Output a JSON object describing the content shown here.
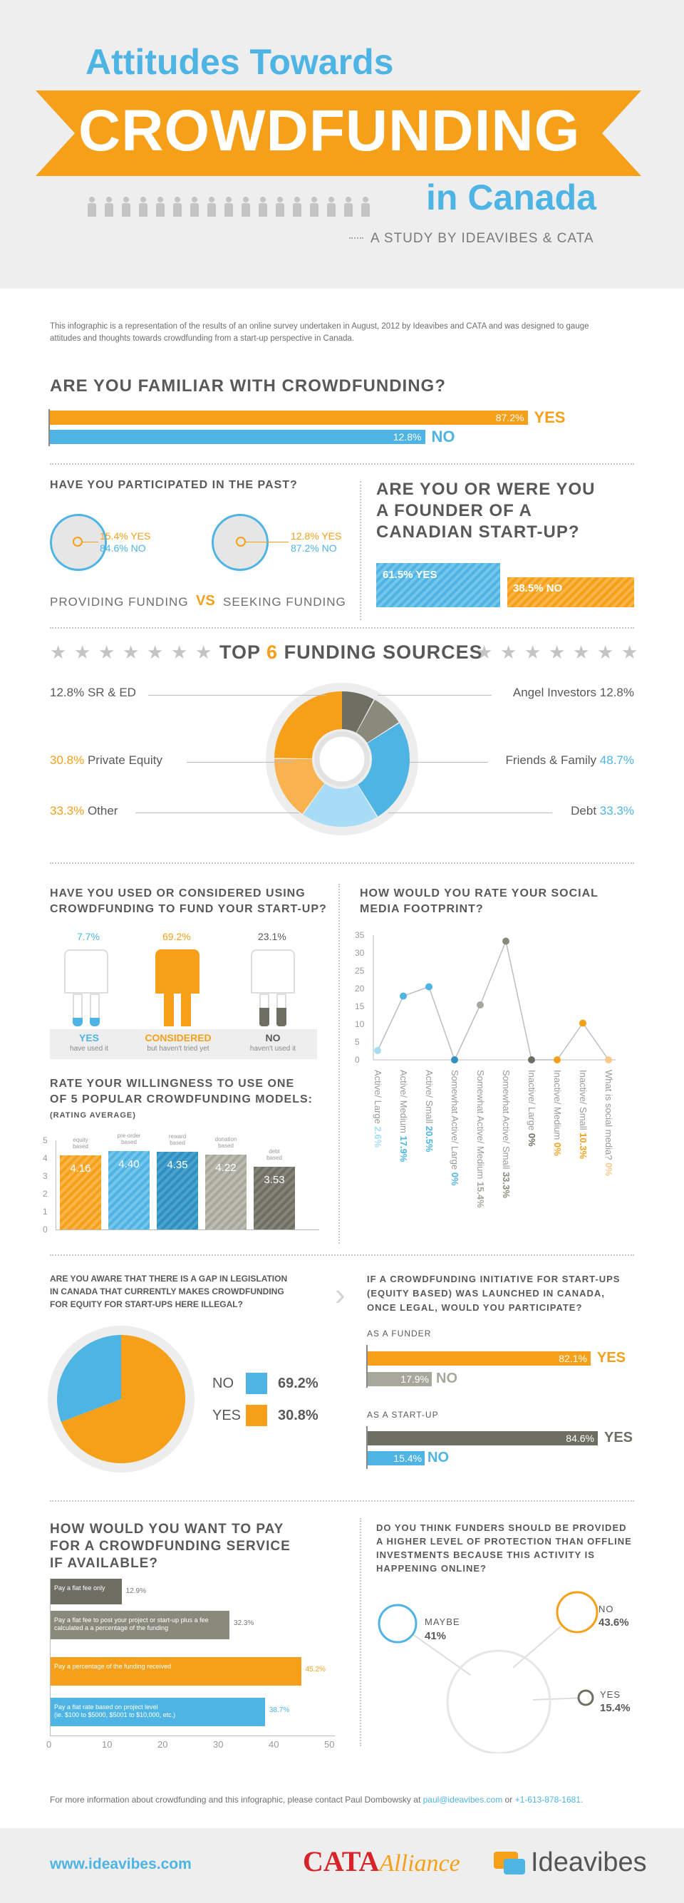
{
  "header": {
    "line1": "Attitudes Towards",
    "line2": "CROWDFUNDING",
    "line3": "in Canada",
    "study": "A STUDY BY IDEAVIBES & CATA"
  },
  "intro": "This infographic is a representation of the results of an online survey undertaken in August, 2012 by Ideavibes and CATA and was designed to gauge attitudes and thoughts towards crowdfunding from a start-up perspective in Canada.",
  "familiar": {
    "question": "ARE YOU FAMILIAR WITH CROWDFUNDING?",
    "yes_value": "87.2%",
    "yes_label": "YES",
    "yes": 87.2,
    "no_value": "12.8%",
    "no_label": "NO",
    "no": 12.8
  },
  "participated": {
    "question": "HAVE YOU PARTICIPATED IN THE PAST?",
    "providing": {
      "yes": "15.4% YES",
      "no": "84.6% NO"
    },
    "seeking": {
      "yes": "12.8% YES",
      "no": "87.2% NO"
    },
    "label_left": "PROVIDING FUNDING",
    "vs": "VS",
    "label_right": "SEEKING FUNDING"
  },
  "founder": {
    "question_line1": "ARE YOU OR WERE YOU",
    "question_line2": "A FOUNDER OF A",
    "question_line3": "CANADIAN START-UP?",
    "yes": "61.5% YES",
    "no": "38.5% NO",
    "yes_value": 61.5
  },
  "sources": {
    "title_a": "TOP",
    "title_num": "6",
    "title_b": "FUNDING SOURCES",
    "sred_value": "12.8%",
    "sred_label": "SR & ED",
    "angel_label": "Angel Investors",
    "angel_value": "12.8%",
    "pe_value": "30.8%",
    "pe_label": "Private Equity",
    "ff_label": "Friends & Family",
    "ff_value": "48.7%",
    "other_value": "33.3%",
    "other_label": "Other",
    "debt_label": "Debt",
    "debt_value": "33.3%"
  },
  "used": {
    "question_line1": "HAVE YOU USED OR CONSIDERED USING",
    "question_line2": "CROWDFUNDING TO FUND YOUR START-UP?",
    "yes_value": "7.7%",
    "yes_label": "YES",
    "yes_sub": "have used it",
    "considered_value": "69.2%",
    "considered_label": "CONSIDERED",
    "considered_sub": "but haven't tried yet",
    "no_value": "23.1%",
    "no_label": "NO",
    "no_sub": "haven't used it"
  },
  "willingness": {
    "question_line1": "RATE YOUR WILLINGNESS TO USE ONE",
    "question_line2": "OF 5 POPULAR CROWDFUNDING MODELS:",
    "sub": "(RATING AVERAGE)",
    "y_ticks": [
      "5",
      "4",
      "3",
      "2",
      "1",
      "0"
    ],
    "bars": [
      {
        "label_top": "equity",
        "label_bot": "based",
        "value_text": "4.16",
        "value": 4.16
      },
      {
        "label_top": "pre-order",
        "label_bot": "based",
        "value_text": "4.40",
        "value": 4.4
      },
      {
        "label_top": "reward",
        "label_bot": "based",
        "value_text": "4.35",
        "value": 4.35
      },
      {
        "label_top": "donation",
        "label_bot": "based",
        "value_text": "4.22",
        "value": 4.22
      },
      {
        "label_top": "debt",
        "label_bot": "based",
        "value_text": "3.53",
        "value": 3.53
      }
    ]
  },
  "social": {
    "question_line1": "HOW WOULD YOU RATE YOUR SOCIAL",
    "question_line2": "MEDIA FOOTPRINT?",
    "y_ticks": [
      "35",
      "30",
      "25",
      "20",
      "15",
      "10",
      "5",
      "0"
    ],
    "points": [
      {
        "label": "Active/ Large",
        "value_text": "2.6%",
        "value": 2.6
      },
      {
        "label": "Active/ Medium",
        "value_text": "17.9%",
        "value": 17.9
      },
      {
        "label": "Active/ Small",
        "value_text": "20.5%",
        "value": 20.5
      },
      {
        "label": "Somewhat Active/ Large",
        "value_text": "0%",
        "value": 0
      },
      {
        "label": "Somewhat Active/ Medium",
        "value_text": "15.4%",
        "value": 15.4
      },
      {
        "label": "Somewhat Active/ Small",
        "value_text": "33.3%",
        "value": 33.3
      },
      {
        "label": "Inactive/ Large",
        "value_text": "0%",
        "value": 0
      },
      {
        "label": "Inactive/ Medium",
        "value_text": "0%",
        "value": 0
      },
      {
        "label": "Inactive/ Small",
        "value_text": "10.3%",
        "value": 10.3
      },
      {
        "label": "What is social media?",
        "value_text": "0%",
        "value": 0
      }
    ]
  },
  "gap": {
    "question_line1": "ARE YOU AWARE THAT THERE IS A GAP IN LEGISLATION",
    "question_line2": "IN CANADA THAT CURRENTLY MAKES CROWDFUNDING",
    "question_line3": "FOR EQUITY FOR START-UPS HERE ILLEGAL?",
    "no_label": "NO",
    "no_value": "69.2%",
    "yes_label": "YES",
    "yes_value": "30.8%"
  },
  "participate": {
    "question_line1": "IF A CROWDFUNDING INITIATIVE FOR START-UPS",
    "question_line2": "(EQUITY BASED) WAS LAUNCHED IN CANADA,",
    "question_line3": "ONCE LEGAL, WOULD YOU PARTICIPATE?",
    "funder_label": "AS A FUNDER",
    "funder_yes": "82.1%",
    "funder_yes_label": "YES",
    "funder_no": "17.9%",
    "funder_no_label": "NO",
    "startup_label": "AS A START-UP",
    "startup_yes": "84.6%",
    "startup_yes_label": "YES",
    "startup_no": "15.4%",
    "startup_no_label": "NO"
  },
  "pay": {
    "question_line1": "HOW WOULD YOU WANT TO PAY",
    "question_line2": "FOR A CROWDFUNDING SERVICE",
    "question_line3": "IF AVAILABLE?",
    "x_ticks": [
      "0",
      "10",
      "20",
      "30",
      "40",
      "50"
    ],
    "bars": [
      {
        "text1": "Pay a flat fee only",
        "text2": "",
        "value_text": "12.9%",
        "value": 12.9
      },
      {
        "text1": "Pay a flat fee to post your project or start-up plus a fee",
        "text2": "calculated a a percentage of the funding",
        "value_text": "32.3%",
        "value": 32.3
      },
      {
        "text1": "Pay a percentage of the funding received",
        "text2": "",
        "value_text": "45.2%",
        "value": 45.2
      },
      {
        "text1": "Pay a flat rate based on project level",
        "text2": "(ie. $100 to $5000, $5001 to $10,000, etc.)",
        "value_text": "38.7%",
        "value": 38.7
      }
    ]
  },
  "protection": {
    "question_line1": "DO YOU THINK FUNDERS SHOULD BE PROVIDED",
    "question_line2": "A HIGHER LEVEL OF PROTECTION THAN OFFLINE",
    "question_line3": "INVESTMENTS BECAUSE THIS ACTIVITY IS",
    "question_line4": "HAPPENING ONLINE?",
    "maybe_label": "MAYBE",
    "maybe_value": "41%",
    "no_label": "NO",
    "no_value": "43.6%",
    "yes_label": "YES",
    "yes_value": "15.4%"
  },
  "contact": {
    "text": "For more information about crowdfunding and this infographic, please contact Paul Dombowsky at",
    "email": "paul@ideavibes.com",
    "or": "or",
    "phone": "+1-613-878-1681."
  },
  "footer": {
    "url": "www.ideavibes.com",
    "cata": "CATA",
    "alliance": "Alliance",
    "ideavibes": "Ideavibes"
  },
  "colors": {
    "orange": "#f6a01a",
    "blue": "#4db4e4",
    "gray": "#6e6e62",
    "light_gray": "#a7a79c"
  }
}
